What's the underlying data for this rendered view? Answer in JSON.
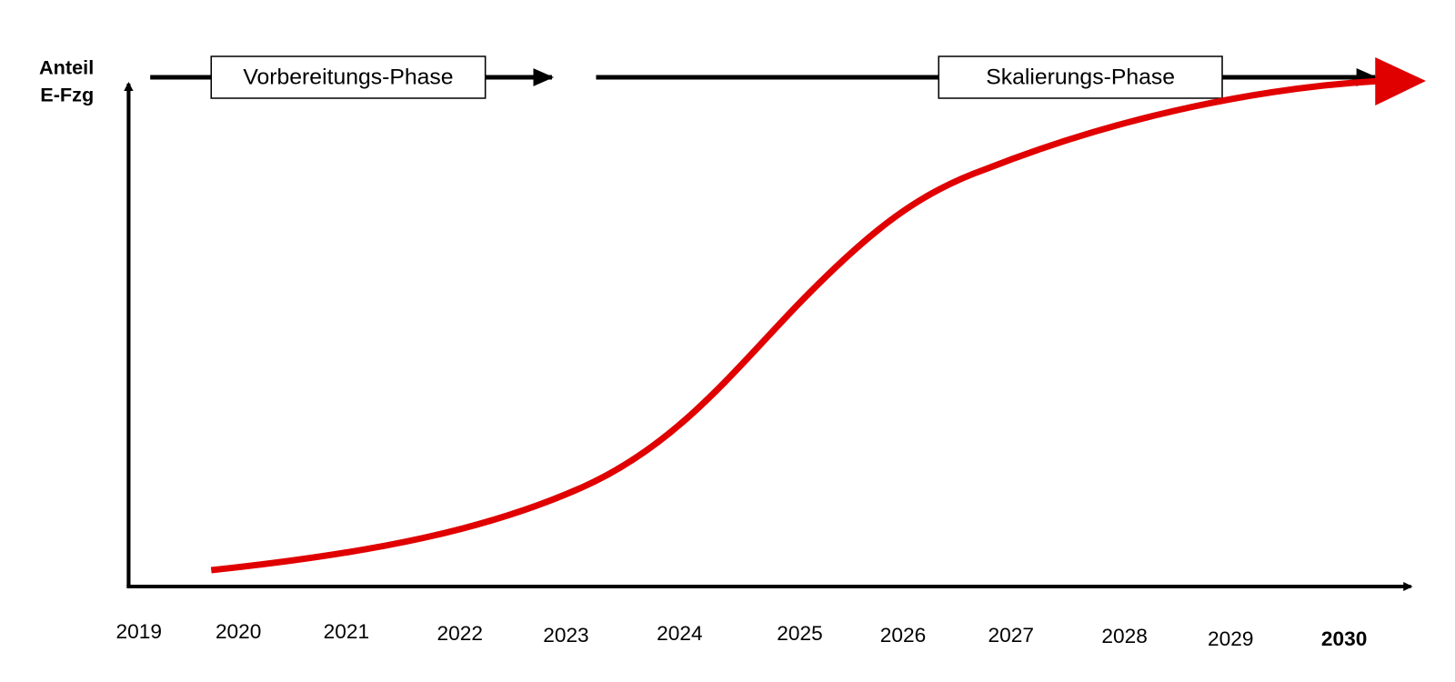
{
  "y_axis_label": [
    "Anteil",
    "E-Fzg"
  ],
  "phases": [
    {
      "label": "Vorbereitungs-Phase"
    },
    {
      "label": "Skalierungs-Phase"
    }
  ],
  "x_axis_labels": [
    "2019",
    "2020",
    "2021",
    "2022",
    "2023",
    "2024",
    "2025",
    "2026",
    "2027",
    "2028",
    "2029",
    "2030"
  ]
}
